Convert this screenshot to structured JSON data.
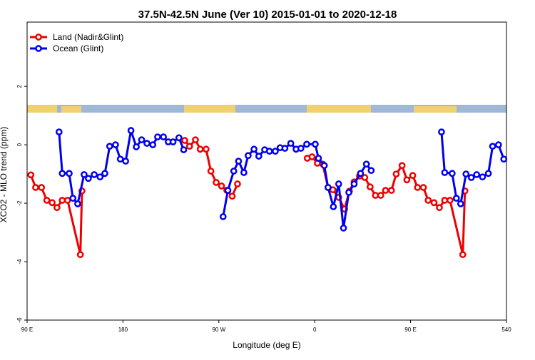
{
  "chart_data": {
    "type": "line",
    "title": "37.5N-42.5N June (Ver 10)   2015-01-01 to 2020-12-18",
    "xlabel": "Longitude (deg E)",
    "ylabel": "XCO2 - MLO trend (ppm)",
    "xlim": [
      90,
      540
    ],
    "xticks": [
      {
        "value": 90,
        "label": "90 E"
      },
      180,
      {
        "value": 270,
        "label": "90 W"
      },
      {
        "value": 360,
        "label": "0"
      },
      {
        "value": 450,
        "label": "90 E"
      },
      540
    ],
    "ylim": [
      -6,
      4.2
    ],
    "yticks": [
      -6,
      -4,
      -2,
      0,
      2
    ],
    "legend": "top-left",
    "series": [
      {
        "name": "Land (Nadir&Glint)",
        "color": "#ee0000",
        "x": [
          93.5,
          98,
          103.5,
          108.5,
          113.5,
          118,
          123,
          128,
          140,
          141.5,
          null,
          238,
          242.5,
          248,
          252.5,
          258,
          262.5,
          267.5,
          272.5,
          277.5,
          282.5,
          287.5,
          null,
          353,
          357.5,
          362.5,
          367.5,
          372.5,
          377,
          382.5,
          388,
          392.5,
          397,
          402,
          407,
          412,
          417,
          422,
          426.5,
          432,
          436.5,
          442,
          446.5,
          452,
          456.5,
          462,
          466.5,
          472,
          477,
          482,
          487,
          499,
          501
        ],
        "values": [
          -1.03,
          -1.46,
          -1.46,
          -1.9,
          -1.98,
          -2.15,
          -1.9,
          -1.9,
          -3.76,
          -1.58,
          null,
          0.15,
          -0.05,
          0.17,
          -0.15,
          -0.15,
          -0.9,
          -1.29,
          -1.41,
          -1.56,
          -1.76,
          -1.34,
          null,
          -0.46,
          -0.41,
          -0.63,
          -0.66,
          -1.46,
          -1.54,
          -1.8,
          -2.2,
          -1.59,
          -1.27,
          -1.07,
          -1.12,
          -1.44,
          -1.73,
          -1.73,
          -1.56,
          -1.56,
          -1.0,
          -0.71,
          -1.2,
          -1.05,
          -1.46,
          -1.46,
          -1.9,
          -1.98,
          -2.15,
          -1.9,
          -1.9,
          -3.76,
          -1.58
        ]
      },
      {
        "name": "Ocean (Glint)",
        "color": "#0000ee",
        "x": [
          120,
          123,
          129.5,
          133,
          137.5,
          143.5,
          147.5,
          153,
          158.5,
          163,
          167.5,
          173,
          177.5,
          182.5,
          187.5,
          192.5,
          197.5,
          202.5,
          208,
          212.5,
          218,
          222.5,
          227,
          232.5,
          237,
          null,
          274,
          278.5,
          284,
          288.5,
          293.5,
          297.5,
          303,
          307.5,
          313,
          317.5,
          323,
          327.5,
          332,
          337.5,
          342.5,
          347,
          352.5,
          360.5,
          363.5,
          369,
          372.5,
          377.5,
          382.5,
          387,
          392,
          397,
          403,
          408.5,
          413,
          null,
          479,
          482,
          489,
          493,
          497,
          502,
          507,
          512,
          517.5,
          523,
          527,
          532.5,
          537.5
        ],
        "values": [
          0.44,
          -0.98,
          -0.98,
          -1.83,
          -2.02,
          -1.02,
          -1.15,
          -1.02,
          -1.1,
          -0.98,
          -0.05,
          0,
          -0.49,
          -0.56,
          0.49,
          -0.07,
          0.17,
          0.05,
          0,
          0.27,
          0.27,
          0.1,
          0.1,
          0.24,
          -0.17,
          null,
          -2.46,
          -1.56,
          -0.9,
          -0.56,
          -0.95,
          -0.37,
          -0.15,
          -0.39,
          -0.17,
          -0.22,
          -0.22,
          -0.1,
          -0.12,
          0.05,
          -0.15,
          -0.12,
          0.02,
          0.02,
          -0.46,
          -0.71,
          -1.46,
          -2.12,
          -1.34,
          -2.85,
          -1.63,
          -1.34,
          -0.98,
          -0.66,
          -0.88,
          null,
          0.44,
          -0.95,
          -0.98,
          -1.83,
          -2.02,
          -1.0,
          -1.12,
          -1.02,
          -1.1,
          -0.98,
          -0.05,
          0,
          -0.49
        ]
      }
    ]
  }
}
